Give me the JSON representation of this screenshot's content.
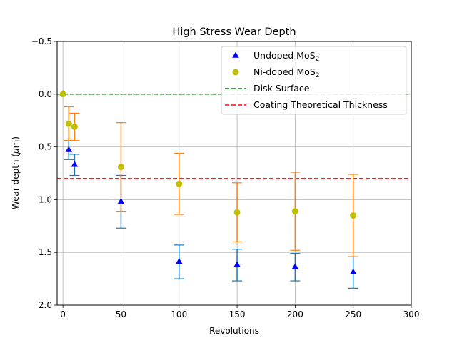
{
  "chart_data": {
    "type": "scatter",
    "title": "High Stress Wear Depth",
    "xlabel": "Revolutions",
    "ylabel_main": "Wear depth (",
    "ylabel_mu": "μ",
    "ylabel_tail": "m)",
    "xlim": [
      -5,
      300
    ],
    "ylim": [
      2.0,
      -0.5
    ],
    "y_inverted": true,
    "grid": true,
    "xticks": [
      0,
      50,
      100,
      150,
      200,
      250,
      300
    ],
    "xtick_labels": [
      "0",
      "50",
      "100",
      "150",
      "200",
      "250",
      "300"
    ],
    "yticks": [
      -0.5,
      0.0,
      0.5,
      1.0,
      1.5,
      2.0
    ],
    "ytick_labels": [
      "−0.5",
      "0.0",
      "0.5",
      "1.0",
      "1.5",
      "2.0"
    ],
    "legend_position": "top-right",
    "series": [
      {
        "name": "Undoped MoS",
        "name_sub": "2",
        "marker": "triangle",
        "color": "#0000ff",
        "errcolor": "#1f77b4",
        "x": [
          0,
          5,
          10,
          50,
          100,
          150,
          200,
          250
        ],
        "y": [
          0.0,
          0.53,
          0.67,
          1.02,
          1.59,
          1.62,
          1.64,
          1.69
        ],
        "yerr": [
          0.0,
          0.09,
          0.1,
          0.25,
          0.16,
          0.15,
          0.13,
          0.15
        ]
      },
      {
        "name": "Ni-doped MoS",
        "name_sub": "2",
        "marker": "circle",
        "color": "#bfbf00",
        "errcolor": "#ff7f0e",
        "x": [
          0,
          5,
          10,
          50,
          100,
          150,
          200,
          250
        ],
        "y": [
          0.0,
          0.28,
          0.31,
          0.69,
          0.85,
          1.12,
          1.11,
          1.15
        ],
        "yerr": [
          0.0,
          0.16,
          0.13,
          0.42,
          0.29,
          0.28,
          0.37,
          0.39
        ]
      }
    ],
    "reference_lines": [
      {
        "name": "Disk Surface",
        "y": 0.0,
        "color": "#008000",
        "style": "dashed"
      },
      {
        "name": "Coating Theoretical Thickness",
        "y": 0.8,
        "color": "#ff0000",
        "style": "dashed"
      }
    ]
  }
}
